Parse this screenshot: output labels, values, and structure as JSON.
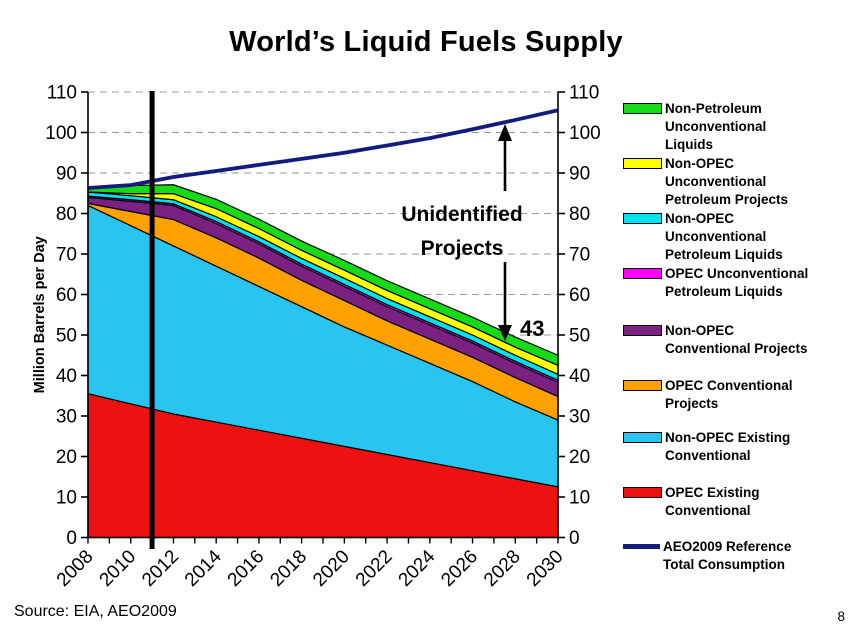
{
  "slide": {
    "title": "World’s Liquid Fuels Supply",
    "source": "Source: EIA, AEO2009",
    "page_number": "8"
  },
  "chart_data": {
    "type": "area",
    "stacked": true,
    "title": "World’s Liquid Fuels Supply",
    "xlabel": "",
    "ylabel": "Million Barrels per Day",
    "ylim": [
      0,
      110
    ],
    "ytick_step": 10,
    "x_axis_range": [
      2008,
      2030
    ],
    "x_label_step": 2,
    "grid": "dashed-horizontal",
    "x_years": [
      2008,
      2010,
      2012,
      2014,
      2016,
      2018,
      2020,
      2022,
      2024,
      2026,
      2028,
      2030
    ],
    "series": [
      {
        "name": "OPEC Existing Conventional",
        "color": "#ee1111",
        "values": [
          35.5,
          33,
          30.5,
          28.5,
          26.5,
          24.5,
          22.5,
          20.5,
          18.5,
          16.5,
          14.5,
          12.5
        ]
      },
      {
        "name": "Non-OPEC Existing Conventional",
        "color": "#29c4f0",
        "values": [
          46.5,
          44,
          41.5,
          38.5,
          35.5,
          32.5,
          29.5,
          27,
          24.5,
          22,
          19,
          16.5
        ]
      },
      {
        "name": "OPEC Conventional Projects",
        "color": "#ffa200",
        "values": [
          0.5,
          3.5,
          6.5,
          7,
          7,
          6.5,
          6.5,
          6,
          6,
          6,
          6,
          5.8
        ]
      },
      {
        "name": "Non-OPEC Conventional Projects",
        "color": "#7a2182",
        "values": [
          1.5,
          2.5,
          3.5,
          3.5,
          3.5,
          3.5,
          3.5,
          3.5,
          3.5,
          3.5,
          3.5,
          3.5
        ]
      },
      {
        "name": "OPEC Unconventional Petroleum Liquids",
        "color": "#ff00ff",
        "values": [
          0.3,
          0.4,
          0.4,
          0.5,
          0.5,
          0.5,
          0.5,
          0.5,
          0.5,
          0.5,
          0.5,
          0.5
        ]
      },
      {
        "name": "Non-OPEC Unconventional Petroleum Liquids",
        "color": "#00e1f0",
        "values": [
          1,
          1,
          1,
          1.2,
          1.3,
          1.4,
          1.5,
          1.5,
          1.5,
          1.5,
          1.5,
          1.5
        ]
      },
      {
        "name": "Non-OPEC Unconventional Petroleum Projects",
        "color": "#ffff00",
        "values": [
          0,
          0.5,
          1.5,
          2,
          2,
          2,
          2,
          2,
          2,
          2,
          2,
          2.2
        ]
      },
      {
        "name": "Non-Petroleum Unconventional Liquids",
        "color": "#17db17",
        "values": [
          1.2,
          2,
          2.2,
          2.3,
          2.3,
          2.3,
          2.4,
          2.4,
          2.4,
          2.4,
          2.5,
          2.5
        ]
      }
    ],
    "consumption_line": {
      "name": "AEO2009 Reference Total Consumption",
      "color": "#131c7d",
      "values": [
        86.3,
        87,
        89,
        90.5,
        92,
        93.5,
        95,
        96.8,
        98.6,
        100.8,
        103.1,
        105.5
      ]
    },
    "vline_year": 2011,
    "annotation": {
      "label_lines": [
        "Unidentified",
        "Projects"
      ],
      "gap_label": "43"
    }
  },
  "legend": {
    "items": [
      {
        "label": "Non-Petroleum\nUnconventional\nLiquids",
        "color": "#17db17",
        "marker": "box"
      },
      {
        "label": "Non-OPEC\nUnconventional\nPetroleum Projects",
        "color": "#ffff00",
        "marker": "box"
      },
      {
        "label": "Non-OPEC\nUnconventional\nPetroleum Liquids",
        "color": "#00e1f0",
        "marker": "box"
      },
      {
        "label": "OPEC Unconventional\nPetroleum Liquids",
        "color": "#ff00ff",
        "marker": "box"
      },
      {
        "label": "Non-OPEC\nConventional Projects",
        "color": "#7a2182",
        "marker": "box"
      },
      {
        "label": "OPEC Conventional\nProjects",
        "color": "#ffa200",
        "marker": "box"
      },
      {
        "label": "Non-OPEC Existing\nConventional",
        "color": "#29c4f0",
        "marker": "box"
      },
      {
        "label": "OPEC Existing\nConventional",
        "color": "#ee1111",
        "marker": "box"
      },
      {
        "label": "AEO2009 Reference\nTotal Consumption",
        "color": "#131c7d",
        "marker": "line"
      }
    ]
  }
}
